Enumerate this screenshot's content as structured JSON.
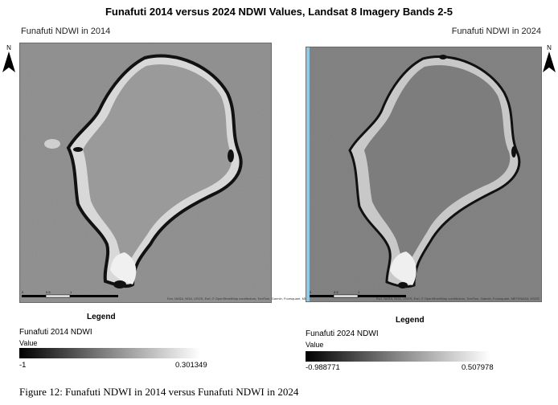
{
  "title": "Funafuti 2014 versus 2024 NDWI Values, Landsat 8 Imagery Bands 2-5",
  "maps": [
    {
      "label": "Funafuti NDWI in 2014",
      "attribution": "Esri, NASA, NGA, USGS, Esri, © OpenStreetMap contributors, TomTom, Garmin, Foursquare, METI/NASA, USGS",
      "scale_ticks": [
        "0",
        "0.5",
        "1"
      ]
    },
    {
      "label": "Funafuti NDWI in 2024",
      "attribution": "Esri, NASA, NGA, USGS, Esri, © OpenStreetMap contributors, TomTom, Garmin, Foursquare, METI/NASA, USGS",
      "scale_ticks": [
        "0",
        "0.5",
        "1"
      ]
    }
  ],
  "north_arrow": {
    "letter": "N",
    "icon": "north-arrow-icon"
  },
  "legends": [
    {
      "title": "Legend",
      "layer": "Funafuti 2014 NDWI",
      "subtitle": "Value",
      "min": "-1",
      "max": "0.301349"
    },
    {
      "title": "Legend",
      "layer": "Funafuti 2024 NDWI",
      "subtitle": "Value",
      "min": "-0.988771",
      "max": "0.507978"
    }
  ],
  "caption": "Figure 12: Funafuti NDWI in 2014 versus Funafuti NDWI in 2024",
  "colors": {
    "ramp_low": "#000000",
    "ramp_high": "#ffffff",
    "land_2014": "#8d8d8d",
    "land_2024": "#7f7f7f",
    "river": "#8ec9e6"
  }
}
